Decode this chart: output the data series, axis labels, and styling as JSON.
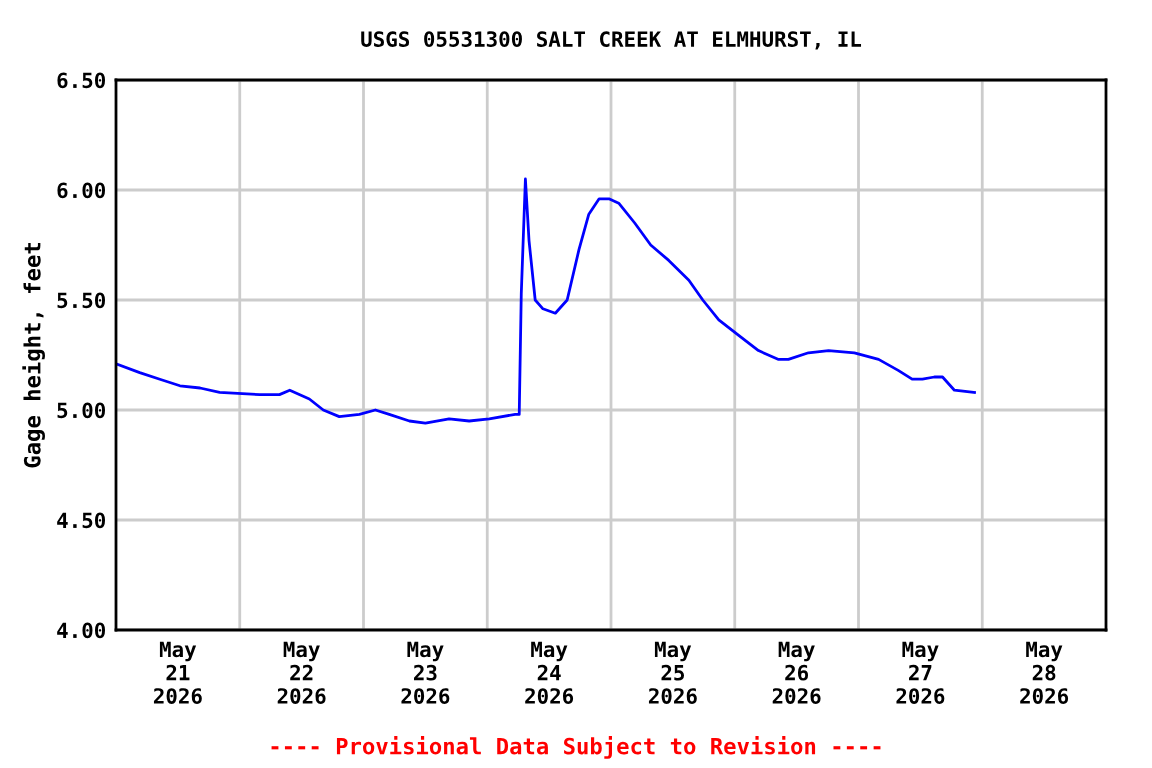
{
  "chart_data": {
    "type": "line",
    "title": "USGS 05531300 SALT CREEK AT ELMHURST, IL",
    "ylabel": "Gage height, feet",
    "x": [
      "2026-05-21T00:00",
      "2026-05-21T04:36",
      "2026-05-21T08:30",
      "2026-05-21T12:24",
      "2026-05-21T16:18",
      "2026-05-21T20:06",
      "2026-05-22T03:54",
      "2026-05-22T07:42",
      "2026-05-22T09:42",
      "2026-05-22T13:30",
      "2026-05-22T16:12",
      "2026-05-22T19:18",
      "2026-05-22T23:12",
      "2026-05-23T02:18",
      "2026-05-23T05:00",
      "2026-05-23T08:54",
      "2026-05-23T12:00",
      "2026-05-23T16:36",
      "2026-05-23T20:30",
      "2026-05-24T00:24",
      "2026-05-24T05:24",
      "2026-05-24T06:12",
      "2026-05-24T06:36",
      "2026-05-24T07:24",
      "2026-05-24T08:06",
      "2026-05-24T09:18",
      "2026-05-24T10:48",
      "2026-05-24T13:12",
      "2026-05-24T15:30",
      "2026-05-24T17:48",
      "2026-05-24T19:42",
      "2026-05-24T21:42",
      "2026-05-24T23:36",
      "2026-05-25T01:30",
      "2026-05-25T04:36",
      "2026-05-25T07:42",
      "2026-05-25T11:12",
      "2026-05-25T15:06",
      "2026-05-25T17:48",
      "2026-05-25T20:54",
      "2026-05-26T00:42",
      "2026-05-26T04:36",
      "2026-05-26T08:30",
      "2026-05-26T10:24",
      "2026-05-26T14:18",
      "2026-05-26T18:12",
      "2026-05-26T23:12",
      "2026-05-27T03:54",
      "2026-05-27T07:42",
      "2026-05-27T10:24",
      "2026-05-27T12:24",
      "2026-05-27T14:42",
      "2026-05-27T16:18",
      "2026-05-27T18:36",
      "2026-05-27T22:30"
    ],
    "series": [
      {
        "color": "#0000ff",
        "values": [
          5.21,
          5.17,
          5.14,
          5.11,
          5.1,
          5.08,
          5.07,
          5.07,
          5.09,
          5.05,
          5.0,
          4.97,
          4.98,
          5.0,
          4.98,
          4.95,
          4.94,
          4.96,
          4.95,
          4.96,
          4.98,
          4.98,
          5.53,
          6.05,
          5.77,
          5.5,
          5.46,
          5.44,
          5.5,
          5.73,
          5.89,
          5.96,
          5.96,
          5.94,
          5.85,
          5.75,
          5.68,
          5.59,
          5.5,
          5.41,
          5.34,
          5.27,
          5.23,
          5.23,
          5.26,
          5.27,
          5.26,
          5.23,
          5.18,
          5.14,
          5.14,
          5.15,
          5.15,
          5.09,
          5.08
        ]
      }
    ],
    "xlim": [
      "2026-05-21T00:00",
      "2026-05-29T00:00"
    ],
    "xticks": [
      {
        "value": "2026-05-21T12:00",
        "label": "May\n21\n2026"
      },
      {
        "value": "2026-05-22T12:00",
        "label": "May\n22\n2026"
      },
      {
        "value": "2026-05-23T12:00",
        "label": "May\n23\n2026"
      },
      {
        "value": "2026-05-24T12:00",
        "label": "May\n24\n2026"
      },
      {
        "value": "2026-05-25T12:00",
        "label": "May\n25\n2026"
      },
      {
        "value": "2026-05-26T12:00",
        "label": "May\n26\n2026"
      },
      {
        "value": "2026-05-27T12:00",
        "label": "May\n27\n2026"
      },
      {
        "value": "2026-05-28T12:00",
        "label": "May\n28\n2026"
      },
      {
        "value": "2026-05-22T00:00",
        "label": null
      },
      {
        "value": "2026-05-23T00:00",
        "label": null
      },
      {
        "value": "2026-05-24T00:00",
        "label": null
      },
      {
        "value": "2026-05-25T00:00",
        "label": null
      },
      {
        "value": "2026-05-26T00:00",
        "label": null
      },
      {
        "value": "2026-05-27T00:00",
        "label": null
      },
      {
        "value": "2026-05-28T00:00",
        "label": null
      }
    ],
    "ylim": [
      4.0,
      6.5
    ],
    "yticks": [
      {
        "value": 4.0,
        "label": "4.00"
      },
      {
        "value": 4.5,
        "label": "4.50"
      },
      {
        "value": 5.0,
        "label": "5.00"
      },
      {
        "value": 5.5,
        "label": "5.50"
      },
      {
        "value": 6.0,
        "label": "6.00"
      },
      {
        "value": 6.5,
        "label": "6.50"
      }
    ],
    "grid": true,
    "legend": false,
    "annotations": [
      "---- Provisional Data Subject to Revision ----"
    ]
  }
}
